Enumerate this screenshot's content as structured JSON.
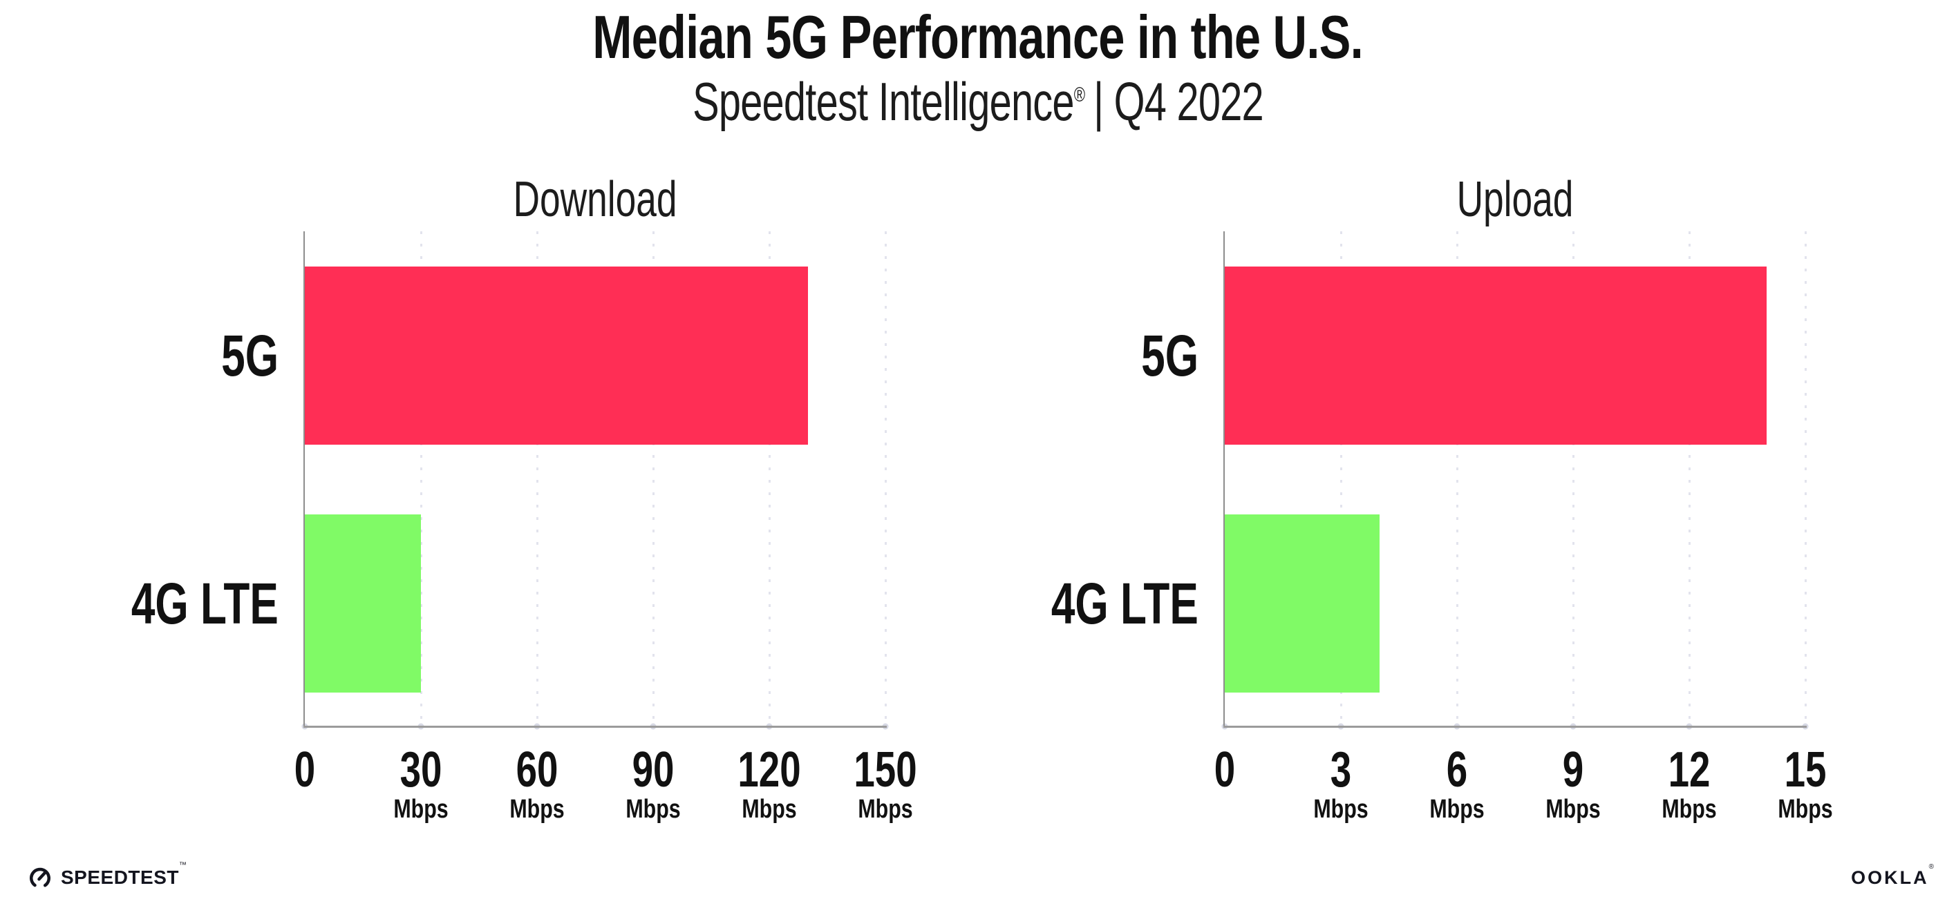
{
  "header": {
    "title": "Median 5G Performance in the U.S.",
    "subtitle_brand": "Speedtest Intelligence",
    "subtitle_reg": "®",
    "subtitle_rest": "| Q4 2022"
  },
  "footer": {
    "speedtest_wordmark": "SPEEDTEST",
    "speedtest_tm": "™",
    "ookla_wordmark": "OOKLA",
    "ookla_reg": "®"
  },
  "colors": {
    "bar_5g": "#ff2e55",
    "bar_4g_lte": "#80fa66",
    "gridline": "#e2e3ed",
    "axis_line": "#9b9b9b",
    "axis_dot": "#d7d9e4",
    "text": "#111111"
  },
  "chart_data": [
    {
      "type": "bar",
      "orientation": "horizontal",
      "title": "Download",
      "categories": [
        "5G",
        "4G LTE"
      ],
      "values": [
        130,
        30
      ],
      "unit": "Mbps",
      "xlim": [
        0,
        150
      ],
      "xticks": [
        0,
        30,
        60,
        90,
        120,
        150
      ],
      "grid": "vertical-dotted",
      "legend": "none",
      "bar_colors": [
        "#ff2e55",
        "#80fa66"
      ]
    },
    {
      "type": "bar",
      "orientation": "horizontal",
      "title": "Upload",
      "categories": [
        "5G",
        "4G LTE"
      ],
      "values": [
        14,
        4
      ],
      "unit": "Mbps",
      "xlim": [
        0,
        15
      ],
      "xticks": [
        0,
        3,
        6,
        9,
        12,
        15
      ],
      "grid": "vertical-dotted",
      "legend": "none",
      "bar_colors": [
        "#ff2e55",
        "#80fa66"
      ]
    }
  ]
}
